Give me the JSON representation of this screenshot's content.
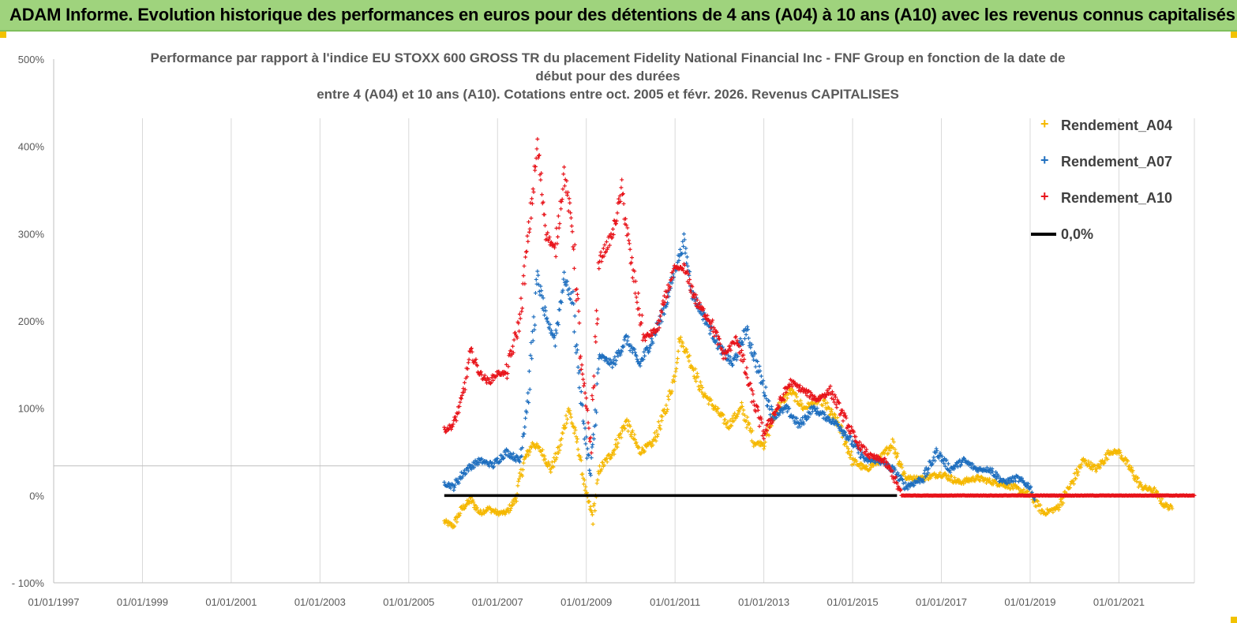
{
  "header": {
    "title": "ADAM Informe. Evolution historique des performances en euros pour des détentions de 4 ans (A04) à 10 ans (A10) avec les revenus connus capitalisés"
  },
  "chart_data": {
    "type": "scatter",
    "title_lines": [
      "Performance par rapport à l'indice EU STOXX 600 GROSS TR  du placement Fidelity National Financial Inc - FNF Group en fonction de la date de",
      "début pour des durées",
      "entre 4 (A04) et 10 ans (A10). Cotations entre oct. 2005 et févr. 2026. Revenus CAPITALISES"
    ],
    "xlabel": "",
    "ylabel": "",
    "x_ticks": [
      "01/01/1997",
      "01/01/1999",
      "01/01/2001",
      "01/01/2003",
      "01/01/2005",
      "01/01/2007",
      "01/01/2009",
      "01/01/2011",
      "01/01/2013",
      "01/01/2015",
      "01/01/2017",
      "01/01/2019",
      "01/01/2021"
    ],
    "xlim": [
      1997.0,
      2022.7
    ],
    "y_ticks": [
      "- 100%",
      "0%",
      "100%",
      "200%",
      "300%",
      "400%",
      "500%"
    ],
    "ylim": [
      -100,
      500
    ],
    "grid": "vertical",
    "legend_position": "top-right",
    "reference_line_y": 0,
    "series": [
      {
        "name": "Rendement_A04",
        "color": "#f5b800",
        "marker": "plus",
        "points": [
          [
            2005.8,
            -30
          ],
          [
            2006.0,
            -35
          ],
          [
            2006.2,
            -15
          ],
          [
            2006.4,
            -5
          ],
          [
            2006.6,
            -20
          ],
          [
            2006.8,
            -15
          ],
          [
            2007.0,
            -20
          ],
          [
            2007.2,
            -20
          ],
          [
            2007.4,
            -5
          ],
          [
            2007.6,
            40
          ],
          [
            2007.8,
            60
          ],
          [
            2008.0,
            50
          ],
          [
            2008.2,
            30
          ],
          [
            2008.4,
            55
          ],
          [
            2008.6,
            100
          ],
          [
            2008.8,
            60
          ],
          [
            2008.9,
            30
          ],
          [
            2009.0,
            0
          ],
          [
            2009.15,
            -25
          ],
          [
            2009.3,
            30
          ],
          [
            2009.6,
            50
          ],
          [
            2009.9,
            85
          ],
          [
            2010.2,
            50
          ],
          [
            2010.5,
            60
          ],
          [
            2010.8,
            100
          ],
          [
            2011.0,
            140
          ],
          [
            2011.1,
            180
          ],
          [
            2011.3,
            160
          ],
          [
            2011.6,
            120
          ],
          [
            2011.9,
            100
          ],
          [
            2012.2,
            80
          ],
          [
            2012.5,
            100
          ],
          [
            2012.8,
            60
          ],
          [
            2013.0,
            60
          ],
          [
            2013.3,
            100
          ],
          [
            2013.6,
            120
          ],
          [
            2013.9,
            100
          ],
          [
            2014.3,
            110
          ],
          [
            2014.7,
            80
          ],
          [
            2015.0,
            40
          ],
          [
            2015.3,
            30
          ],
          [
            2015.6,
            40
          ],
          [
            2015.9,
            60
          ],
          [
            2016.2,
            20
          ],
          [
            2016.6,
            20
          ],
          [
            2017.0,
            25
          ],
          [
            2017.4,
            15
          ],
          [
            2017.8,
            20
          ],
          [
            2018.2,
            15
          ],
          [
            2018.6,
            10
          ],
          [
            2019.0,
            0
          ],
          [
            2019.3,
            -20
          ],
          [
            2019.6,
            -15
          ],
          [
            2019.9,
            10
          ],
          [
            2020.2,
            40
          ],
          [
            2020.5,
            30
          ],
          [
            2020.8,
            50
          ],
          [
            2021.0,
            50
          ],
          [
            2021.2,
            35
          ],
          [
            2021.5,
            10
          ],
          [
            2021.8,
            5
          ],
          [
            2022.0,
            -10
          ],
          [
            2022.2,
            -15
          ]
        ]
      },
      {
        "name": "Rendement_A07",
        "color": "#1f6fbf",
        "marker": "plus",
        "points": [
          [
            2005.8,
            15
          ],
          [
            2006.0,
            10
          ],
          [
            2006.3,
            30
          ],
          [
            2006.6,
            40
          ],
          [
            2006.9,
            35
          ],
          [
            2007.2,
            50
          ],
          [
            2007.5,
            40
          ],
          [
            2007.7,
            120
          ],
          [
            2007.9,
            250
          ],
          [
            2008.1,
            200
          ],
          [
            2008.3,
            180
          ],
          [
            2008.5,
            250
          ],
          [
            2008.7,
            220
          ],
          [
            2008.9,
            100
          ],
          [
            2009.1,
            20
          ],
          [
            2009.3,
            160
          ],
          [
            2009.6,
            150
          ],
          [
            2009.9,
            180
          ],
          [
            2010.2,
            150
          ],
          [
            2010.5,
            180
          ],
          [
            2010.8,
            220
          ],
          [
            2011.0,
            260
          ],
          [
            2011.2,
            290
          ],
          [
            2011.4,
            230
          ],
          [
            2011.7,
            200
          ],
          [
            2012.0,
            170
          ],
          [
            2012.3,
            150
          ],
          [
            2012.6,
            190
          ],
          [
            2012.9,
            140
          ],
          [
            2013.2,
            90
          ],
          [
            2013.5,
            100
          ],
          [
            2013.8,
            80
          ],
          [
            2014.1,
            100
          ],
          [
            2014.4,
            90
          ],
          [
            2014.7,
            80
          ],
          [
            2015.0,
            60
          ],
          [
            2015.3,
            40
          ],
          [
            2015.6,
            40
          ],
          [
            2015.9,
            30
          ],
          [
            2016.2,
            10
          ],
          [
            2016.6,
            20
          ],
          [
            2016.9,
            50
          ],
          [
            2017.2,
            30
          ],
          [
            2017.5,
            40
          ],
          [
            2017.8,
            30
          ],
          [
            2018.1,
            30
          ],
          [
            2018.4,
            15
          ],
          [
            2018.7,
            20
          ],
          [
            2019.0,
            10
          ],
          [
            2019.1,
            -5
          ]
        ]
      },
      {
        "name": "Rendement_A10",
        "color": "#e8141b",
        "marker": "plus",
        "points": [
          [
            2005.8,
            75
          ],
          [
            2006.0,
            80
          ],
          [
            2006.2,
            110
          ],
          [
            2006.4,
            165
          ],
          [
            2006.6,
            140
          ],
          [
            2006.8,
            130
          ],
          [
            2007.0,
            140
          ],
          [
            2007.2,
            140
          ],
          [
            2007.5,
            200
          ],
          [
            2007.7,
            300
          ],
          [
            2007.9,
            400
          ],
          [
            2008.1,
            300
          ],
          [
            2008.3,
            280
          ],
          [
            2008.5,
            370
          ],
          [
            2008.7,
            300
          ],
          [
            2008.9,
            140
          ],
          [
            2009.1,
            60
          ],
          [
            2009.3,
            270
          ],
          [
            2009.6,
            300
          ],
          [
            2009.8,
            350
          ],
          [
            2010.0,
            270
          ],
          [
            2010.3,
            180
          ],
          [
            2010.6,
            190
          ],
          [
            2010.8,
            230
          ],
          [
            2011.0,
            260
          ],
          [
            2011.2,
            260
          ],
          [
            2011.5,
            220
          ],
          [
            2011.8,
            200
          ],
          [
            2012.1,
            160
          ],
          [
            2012.4,
            180
          ],
          [
            2012.7,
            120
          ],
          [
            2013.0,
            70
          ],
          [
            2013.3,
            100
          ],
          [
            2013.6,
            130
          ],
          [
            2013.9,
            120
          ],
          [
            2014.2,
            110
          ],
          [
            2014.5,
            120
          ],
          [
            2014.8,
            90
          ],
          [
            2015.1,
            60
          ],
          [
            2015.4,
            45
          ],
          [
            2015.7,
            40
          ],
          [
            2015.9,
            25
          ],
          [
            2016.1,
            0
          ],
          [
            2016.5,
            0
          ],
          [
            2017.0,
            0
          ],
          [
            2017.5,
            0
          ],
          [
            2018.0,
            0
          ],
          [
            2018.5,
            0
          ],
          [
            2019.0,
            0
          ],
          [
            2019.5,
            0
          ],
          [
            2020.0,
            0
          ],
          [
            2020.5,
            0
          ],
          [
            2021.0,
            0
          ],
          [
            2021.5,
            0
          ],
          [
            2022.0,
            0
          ],
          [
            2022.7,
            0
          ]
        ]
      },
      {
        "name": "0,0%",
        "color": "#000000",
        "marker": "line",
        "points": [
          [
            2005.8,
            0
          ],
          [
            2016.0,
            0
          ]
        ]
      }
    ]
  }
}
